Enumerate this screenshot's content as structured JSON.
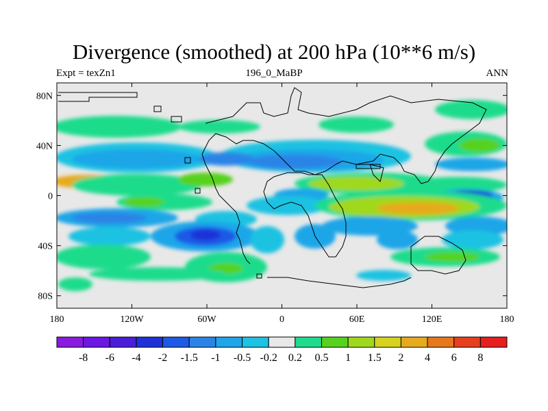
{
  "title": "Divergence (smoothed) at 200 hPa (10**6 m/s)",
  "left_label": "Expt = texZn1",
  "center_label": "196_0_MaBP",
  "right_label": "ANN",
  "lat_ticks": [
    {
      "lat": 80,
      "label": "80N"
    },
    {
      "lat": 40,
      "label": "40N"
    },
    {
      "lat": 0,
      "label": "0"
    },
    {
      "lat": -40,
      "label": "40S"
    },
    {
      "lat": -80,
      "label": "80S"
    }
  ],
  "lon_ticks": [
    {
      "lon": -180,
      "label": "180"
    },
    {
      "lon": -120,
      "label": "120W"
    },
    {
      "lon": -60,
      "label": "60W"
    },
    {
      "lon": 0,
      "label": "0"
    },
    {
      "lon": 60,
      "label": "60E"
    },
    {
      "lon": 120,
      "label": "120E"
    },
    {
      "lon": 180,
      "label": "180"
    }
  ],
  "colorbar": {
    "colors": [
      "#8a1ae0",
      "#6a18e2",
      "#4a1ed8",
      "#1e32d8",
      "#1e5ae6",
      "#2a84e6",
      "#1ea6e8",
      "#1ec2e2",
      "#e8e8e8",
      "#1edc8c",
      "#56d21e",
      "#a0d81e",
      "#d6d21e",
      "#e6aa1e",
      "#e6781e",
      "#e6401e",
      "#e61e1e"
    ],
    "labels": [
      "-8",
      "-6",
      "-4",
      "-2",
      "-1.5",
      "-1",
      "-0.5",
      "-0.2",
      "0.2",
      "0.5",
      "1",
      "1.5",
      "2",
      "4",
      "6",
      "8"
    ]
  }
}
